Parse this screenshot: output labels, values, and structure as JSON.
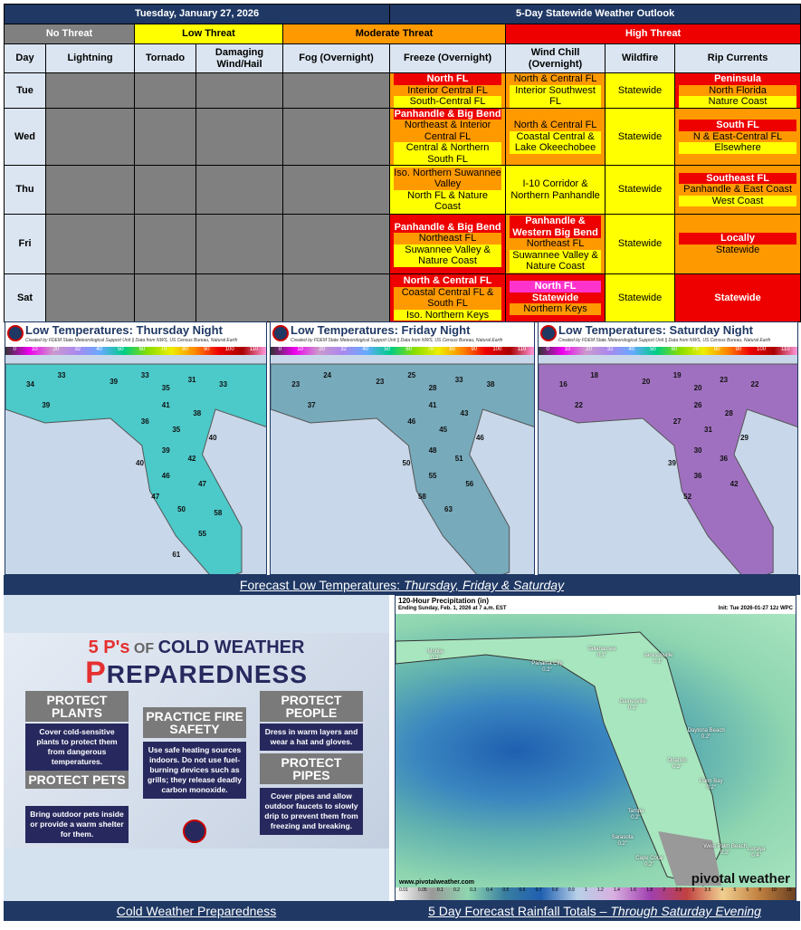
{
  "header": {
    "date": "Tuesday, January 27, 2026",
    "title": "5-Day Statewide Weather Outlook"
  },
  "legend": [
    {
      "label": "No Threat",
      "color": "#808080",
      "text": "#ffffff"
    },
    {
      "label": "Low Threat",
      "color": "#ffff00",
      "text": "#000000"
    },
    {
      "label": "Moderate Threat",
      "color": "#ff9900",
      "text": "#000000"
    },
    {
      "label": "High Threat",
      "color": "#ee0000",
      "text": "#ffffff"
    }
  ],
  "columns": [
    "Day",
    "Lightning",
    "Tornado",
    "Damaging Wind/Hail",
    "Fog (Overnight)",
    "Freeze (Overnight)",
    "Wind Chill (Overnight)",
    "Wildfire",
    "Rip Currents"
  ],
  "colors": {
    "red": "#ee0000",
    "orange": "#ff9900",
    "yellow": "#ffff00",
    "pink": "#ff33cc",
    "gray": "#808080",
    "navy": "#1f3864"
  },
  "rows": [
    {
      "day": "Tue",
      "cells": [
        {
          "bg": "#ff9900",
          "lines": [
            {
              "t": "North FL",
              "h": "#ee0000",
              "w": 1
            },
            {
              "t": "Interior Central FL",
              "h": "#ff9900"
            },
            {
              "t": "South-Central FL",
              "h": "#ffff00"
            }
          ]
        },
        {
          "bg": "#ff9900",
          "lines": [
            {
              "t": "North & Central FL",
              "h": "#ff9900"
            },
            {
              "t": "Interior Southwest FL",
              "h": "#ffff00"
            }
          ]
        },
        {
          "bg": "#ffff00",
          "lines": [
            {
              "t": "Statewide"
            }
          ]
        },
        {
          "bg": "#ee0000",
          "lines": [
            {
              "t": "Peninsula",
              "h": "#ee0000",
              "w": 1
            },
            {
              "t": "North Florida",
              "h": "#ff9900"
            },
            {
              "t": "Nature Coast",
              "h": "#ffff00"
            }
          ]
        }
      ]
    },
    {
      "day": "Wed",
      "cells": [
        {
          "bg": "#ff9900",
          "lines": [
            {
              "t": "Panhandle & Big Bend",
              "h": "#ee0000",
              "w": 1
            },
            {
              "t": "Northeast & Interior Central FL",
              "h": "#ff9900"
            },
            {
              "t": "Central & Northern South FL",
              "h": "#ffff00"
            }
          ]
        },
        {
          "bg": "#ff9900",
          "lines": [
            {
              "t": "North & Central FL",
              "h": "#ff9900"
            },
            {
              "t": "Coastal Central & Lake Okeechobee",
              "h": "#ffff00"
            }
          ]
        },
        {
          "bg": "#ffff00",
          "lines": [
            {
              "t": "Statewide"
            }
          ]
        },
        {
          "bg": "#ff9900",
          "lines": [
            {
              "t": "South FL",
              "h": "#ee0000",
              "w": 1
            },
            {
              "t": "N & East-Central FL",
              "h": "#ff9900"
            },
            {
              "t": "Elsewhere",
              "h": "#ffff00"
            }
          ]
        }
      ]
    },
    {
      "day": "Thu",
      "cells": [
        {
          "bg": "#ffff00",
          "lines": [
            {
              "t": "Iso. Northern Suwannee Valley",
              "h": "#ff9900"
            },
            {
              "t": "North FL & Nature Coast",
              "h": "#ffff00"
            }
          ]
        },
        {
          "bg": "#ffff00",
          "lines": [
            {
              "t": "I-10 Corridor & Northern Panhandle"
            }
          ]
        },
        {
          "bg": "#ffff00",
          "lines": [
            {
              "t": "Statewide"
            }
          ]
        },
        {
          "bg": "#ff9900",
          "lines": [
            {
              "t": "Southeast FL",
              "h": "#ee0000",
              "w": 1
            },
            {
              "t": "Panhandle & East Coast",
              "h": "#ff9900"
            },
            {
              "t": "West Coast",
              "h": "#ffff00"
            }
          ]
        }
      ]
    },
    {
      "day": "Fri",
      "cells": [
        {
          "bg": "#ee0000",
          "lines": [
            {
              "t": "Panhandle & Big Bend",
              "h": "#ee0000",
              "w": 1
            },
            {
              "t": "Northeast FL",
              "h": "#ff9900"
            },
            {
              "t": "Suwannee Valley & Nature Coast",
              "h": "#ffff00"
            }
          ]
        },
        {
          "bg": "#ff9900",
          "lines": [
            {
              "t": "Panhandle & Western Big Bend",
              "h": "#ee0000",
              "w": 1
            },
            {
              "t": "Northeast FL",
              "h": "#ff9900"
            },
            {
              "t": "Suwannee Valley & Nature Coast",
              "h": "#ffff00"
            }
          ]
        },
        {
          "bg": "#ffff00",
          "lines": [
            {
              "t": "Statewide"
            }
          ]
        },
        {
          "bg": "#ff9900",
          "lines": [
            {
              "t": "Locally",
              "h": "#ee0000",
              "w": 1
            },
            {
              "t": "Statewide",
              "h": "#ff9900"
            }
          ]
        }
      ]
    },
    {
      "day": "Sat",
      "cells": [
        {
          "bg": "#ee0000",
          "lines": [
            {
              "t": "North & Central FL",
              "h": "#ee0000",
              "w": 1
            },
            {
              "t": "Coastal Central FL & South FL",
              "h": "#ff9900"
            },
            {
              "t": "Iso. Northern Keys",
              "h": "#ffff00"
            }
          ]
        },
        {
          "bg": "#ee0000",
          "lines": [
            {
              "t": "North FL",
              "h": "#ff33cc",
              "w": 1
            },
            {
              "t": "Statewide",
              "h": "#ee0000",
              "w": 1
            },
            {
              "t": "Northern Keys",
              "h": "#ff9900"
            }
          ]
        },
        {
          "bg": "#ffff00",
          "lines": [
            {
              "t": "Statewide"
            }
          ]
        },
        {
          "bg": "#ee0000",
          "lines": [
            {
              "t": "Statewide",
              "h": "#ee0000",
              "w": 1
            }
          ]
        }
      ]
    }
  ],
  "maps": {
    "credit": "Created by FDEM State Meteorological Support Unit || Data from NWS, US Census Bureau, Natural Earth",
    "scale": [
      "0",
      "10",
      "20",
      "32",
      "40",
      "50",
      "60",
      "70",
      "80",
      "90",
      "100",
      "110"
    ],
    "panels": [
      {
        "title": "Low Temperatures: Thursday Night",
        "color": "#4cc9c9",
        "temps": [
          "34",
          "33",
          "39",
          "33",
          "35",
          "31",
          "33",
          "39",
          "41",
          "38",
          "35",
          "36",
          "40",
          "39",
          "42",
          "40",
          "46",
          "47",
          "47",
          "50",
          "58",
          "55",
          "61"
        ]
      },
      {
        "title": "Low Temperatures: Friday Night",
        "color": "#7ab",
        "temps": [
          "23",
          "24",
          "23",
          "25",
          "28",
          "33",
          "38",
          "37",
          "41",
          "43",
          "45",
          "46",
          "46",
          "48",
          "51",
          "50",
          "55",
          "56",
          "58",
          "63"
        ]
      },
      {
        "title": "Low Temperatures: Saturday Night",
        "color": "#a070c0",
        "temps": [
          "16",
          "18",
          "20",
          "19",
          "20",
          "23",
          "22",
          "22",
          "26",
          "28",
          "31",
          "27",
          "29",
          "30",
          "36",
          "39",
          "36",
          "42",
          "52"
        ]
      }
    ],
    "caption_prefix": "Forecast Low Temperatures: ",
    "caption_days": "Thursday, Friday & Saturday"
  },
  "prep": {
    "title1a": "5 P's",
    "title1b": " OF ",
    "title1c": "COLD WEATHER",
    "title2a": "P",
    "title2b": "REPAREDNESS",
    "items": [
      {
        "head": "PROTECT PLANTS",
        "body": "Cover cold-sensitive plants to protect them from dangerous temperatures."
      },
      {
        "head": "PROTECT PETS",
        "body": "Bring outdoor pets inside or provide a warm shelter for them."
      },
      {
        "head": "PRACTICE FIRE SAFETY",
        "body": "Use safe heating sources indoors. Do not use fuel-burning devices such as grills; they release deadly carbon monoxide."
      },
      {
        "head": "PROTECT PEOPLE",
        "body": "Dress in warm layers and wear a hat and gloves."
      },
      {
        "head": "PROTECT PIPES",
        "body": "Cover pipes and allow outdoor faucets to slowly drip to prevent them from freezing and breaking."
      }
    ],
    "logo": "FDEM",
    "caption": "Cold Weather Preparedness"
  },
  "precip": {
    "title": "120-Hour Precipitation (in)",
    "subtitle": "Ending Sunday, Feb. 1, 2026 at 7 a.m. EST",
    "init": "Init: Tue 2026-01-27 12z WPC",
    "site": "www.pivotalweather.com",
    "brand": "pivotal weather",
    "scale": [
      "0.01",
      "0.05",
      "0.1",
      "0.2",
      "0.3",
      "0.4",
      "0.5",
      "0.6",
      "0.7",
      "0.8",
      "0.9",
      "1",
      "1.2",
      "1.4",
      "1.6",
      "1.8",
      "2",
      "2.5",
      "3",
      "3.5",
      "4",
      "5",
      "6",
      "8",
      "10",
      "15"
    ],
    "cities": [
      {
        "n": "Mobile",
        "v": "0.2\""
      },
      {
        "n": "Tallahassee",
        "v": "0.1\""
      },
      {
        "n": "Panama City",
        "v": "0.2\""
      },
      {
        "n": "Jacksonville",
        "v": "0.1\""
      },
      {
        "n": "Gainesville",
        "v": "0.1\""
      },
      {
        "n": "Daytona Beach",
        "v": "0.2\""
      },
      {
        "n": "Orlando",
        "v": "0.2\""
      },
      {
        "n": "Palm Bay",
        "v": "0.2\""
      },
      {
        "n": "Tampa",
        "v": "0.2\""
      },
      {
        "n": "Sarasota",
        "v": "0.2\""
      },
      {
        "n": "West Palm Beach",
        "v": "0.2\""
      },
      {
        "n": "Cape Coral",
        "v": "0.2\""
      },
      {
        "n": "Lucaya",
        "v": "0.4\""
      }
    ],
    "caption_main": "5 Day Forecast Rainfall Totals",
    "caption_dash": " – ",
    "caption_it": "Through Saturday Evening"
  }
}
